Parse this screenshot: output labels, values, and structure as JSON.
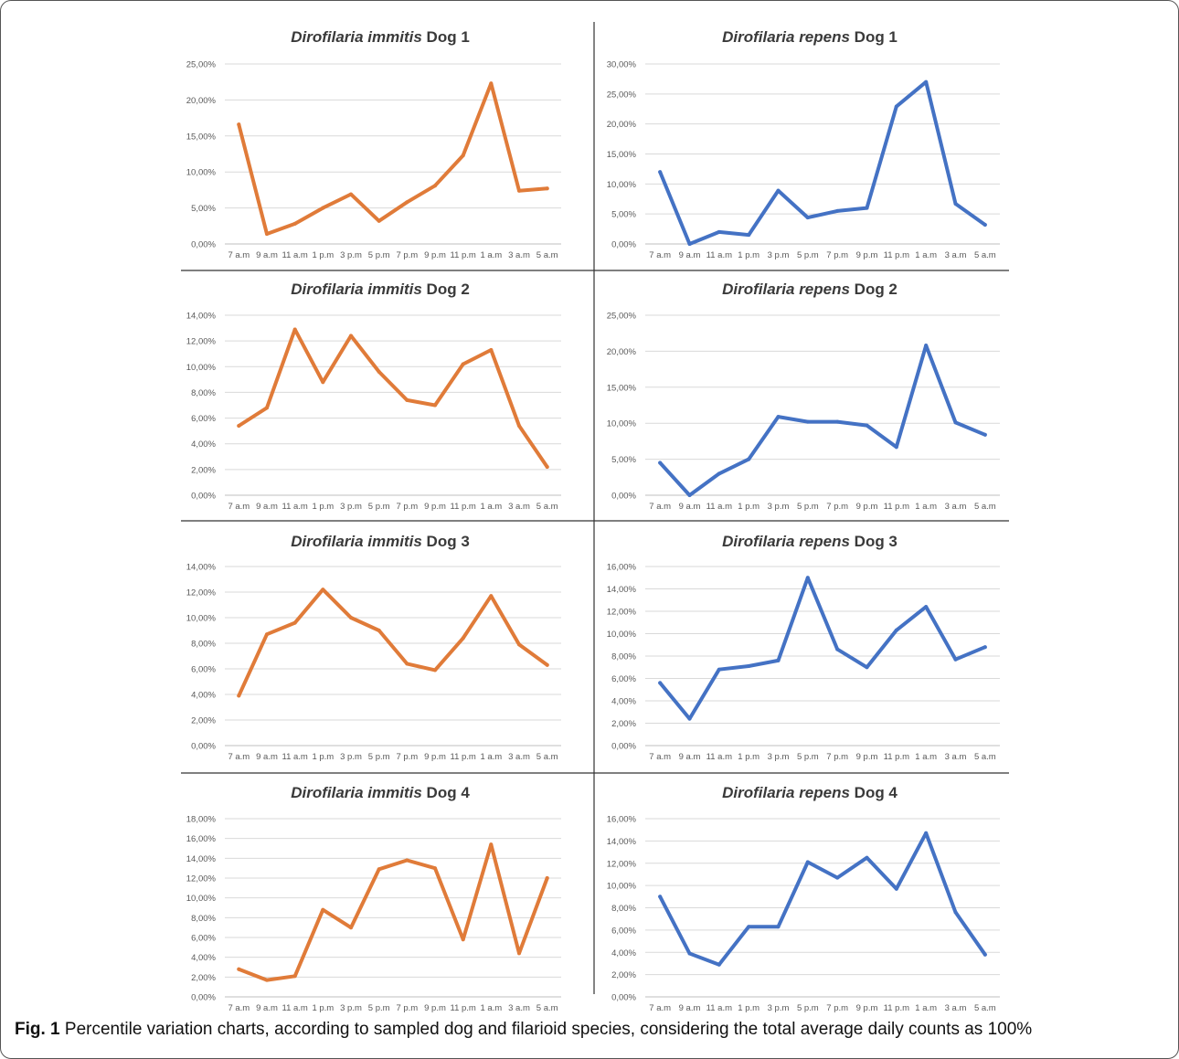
{
  "caption": {
    "label": "Fig. 1",
    "text": "Percentile variation charts, according to sampled dog and filarioid species, considering the total average daily counts as 100%"
  },
  "colors": {
    "immitis": "#e07b39",
    "repens": "#4472c4"
  },
  "chart_data": [
    {
      "type": "line",
      "title_species": "Dirofilaria immitis",
      "title_rest": " Dog 1",
      "categories": [
        "7 a.m",
        "9 a.m",
        "11 a.m",
        "1 p.m",
        "3 p.m",
        "5 p.m",
        "7 p.m",
        "9 p.m",
        "11 p.m",
        "1 a.m",
        "3 a.m",
        "5 a.m"
      ],
      "values": [
        16.6,
        1.4,
        2.8,
        5.0,
        6.9,
        3.2,
        5.8,
        8.1,
        12.3,
        22.3,
        7.4,
        7.7
      ],
      "yticks": [
        "0,00%",
        "5,00%",
        "10,00%",
        "15,00%",
        "20,00%",
        "25,00%"
      ],
      "ylim": [
        0,
        25
      ],
      "color": "immitis",
      "grid": true
    },
    {
      "type": "line",
      "title_species": "Dirofilaria repens",
      "title_rest": " Dog 1",
      "categories": [
        "7 a.m",
        "9 a.m",
        "11 a.m",
        "1 p.m",
        "3 p.m",
        "5 p.m",
        "7 p.m",
        "9 p.m",
        "11 p.m",
        "1 a.m",
        "3 a.m",
        "5 a.m"
      ],
      "values": [
        12.0,
        0.0,
        2.0,
        1.5,
        8.9,
        4.4,
        5.5,
        6.0,
        22.9,
        27.0,
        6.7,
        3.2
      ],
      "yticks": [
        "0,00%",
        "5,00%",
        "10,00%",
        "15,00%",
        "20,00%",
        "25,00%",
        "30,00%"
      ],
      "ylim": [
        0,
        30
      ],
      "color": "repens",
      "grid": true
    },
    {
      "type": "line",
      "title_species": "Dirofilaria immitis",
      "title_rest": " Dog 2",
      "categories": [
        "7 a.m",
        "9 a.m",
        "11 a.m",
        "1 p.m",
        "3 p.m",
        "5 p.m",
        "7 p.m",
        "9 p.m",
        "11 p.m",
        "1 a.m",
        "3 a.m",
        "5 a.m"
      ],
      "values": [
        5.4,
        6.8,
        12.9,
        8.8,
        12.4,
        9.6,
        7.4,
        7.0,
        10.2,
        11.3,
        5.4,
        2.2
      ],
      "yticks": [
        "0,00%",
        "2,00%",
        "4,00%",
        "6,00%",
        "8,00%",
        "10,00%",
        "12,00%",
        "14,00%"
      ],
      "ylim": [
        0,
        14
      ],
      "color": "immitis",
      "grid": true
    },
    {
      "type": "line",
      "title_species": "Dirofilaria repens",
      "title_rest": " Dog 2",
      "categories": [
        "7 a.m",
        "9 a.m",
        "11 a.m",
        "1 p.m",
        "3 p.m",
        "5 p.m",
        "7 p.m",
        "9 p.m",
        "11 p.m",
        "1 a.m",
        "3 a.m",
        "5 a.m"
      ],
      "values": [
        4.5,
        0.0,
        3.0,
        5.0,
        10.9,
        10.2,
        10.2,
        9.7,
        6.7,
        20.8,
        10.1,
        8.4
      ],
      "yticks": [
        "0,00%",
        "5,00%",
        "10,00%",
        "15,00%",
        "20,00%",
        "25,00%"
      ],
      "ylim": [
        0,
        25
      ],
      "color": "repens",
      "grid": true
    },
    {
      "type": "line",
      "title_species": "Dirofilaria immitis",
      "title_rest": " Dog 3",
      "categories": [
        "7 a.m",
        "9 a.m",
        "11 a.m",
        "1 p.m",
        "3 p.m",
        "5 p.m",
        "7 p.m",
        "9 p.m",
        "11 p.m",
        "1 a.m",
        "3 a.m",
        "5 a.m"
      ],
      "values": [
        3.9,
        8.7,
        9.6,
        12.2,
        10.0,
        9.0,
        6.4,
        5.9,
        8.4,
        11.7,
        7.9,
        6.3
      ],
      "yticks": [
        "0,00%",
        "2,00%",
        "4,00%",
        "6,00%",
        "8,00%",
        "10,00%",
        "12,00%",
        "14,00%"
      ],
      "ylim": [
        0,
        14
      ],
      "color": "immitis",
      "grid": true
    },
    {
      "type": "line",
      "title_species": "Dirofilaria repens",
      "title_rest": " Dog 3",
      "categories": [
        "7 a.m",
        "9 a.m",
        "11 a.m",
        "1 p.m",
        "3 p.m",
        "5 p.m",
        "7 p.m",
        "9 p.m",
        "11 p.m",
        "1 a.m",
        "3 a.m",
        "5 a.m"
      ],
      "values": [
        5.6,
        2.4,
        6.8,
        7.1,
        7.6,
        15.0,
        8.6,
        7.0,
        10.3,
        12.4,
        7.7,
        8.8
      ],
      "yticks": [
        "0,00%",
        "2,00%",
        "4,00%",
        "6,00%",
        "8,00%",
        "10,00%",
        "12,00%",
        "14,00%",
        "16,00%"
      ],
      "ylim": [
        0,
        16
      ],
      "color": "repens",
      "grid": true
    },
    {
      "type": "line",
      "title_species": "Dirofilaria immitis",
      "title_rest": " Dog 4",
      "categories": [
        "7 a.m",
        "9 a.m",
        "11 a.m",
        "1 p.m",
        "3 p.m",
        "5 p.m",
        "7 p.m",
        "9 p.m",
        "11 p.m",
        "1 a.m",
        "3 a.m",
        "5 a.m"
      ],
      "values": [
        2.8,
        1.7,
        2.1,
        8.8,
        7.0,
        12.9,
        13.8,
        13.0,
        5.8,
        15.4,
        4.4,
        12.0
      ],
      "yticks": [
        "0,00%",
        "2,00%",
        "4,00%",
        "6,00%",
        "8,00%",
        "10,00%",
        "12,00%",
        "14,00%",
        "16,00%",
        "18,00%"
      ],
      "ylim": [
        0,
        18
      ],
      "color": "immitis",
      "grid": true
    },
    {
      "type": "line",
      "title_species": "Dirofilaria repens",
      "title_rest": " Dog 4",
      "categories": [
        "7 a.m",
        "9 a.m",
        "11 a.m",
        "1 p.m",
        "3 p.m",
        "5 p.m",
        "7 p.m",
        "9 p.m",
        "11 p.m",
        "1 a.m",
        "3 a.m",
        "5 a.m"
      ],
      "values": [
        9.0,
        3.9,
        2.9,
        6.3,
        6.3,
        12.1,
        10.7,
        12.5,
        9.7,
        14.7,
        7.6,
        3.8
      ],
      "yticks": [
        "0,00%",
        "2,00%",
        "4,00%",
        "6,00%",
        "8,00%",
        "10,00%",
        "12,00%",
        "14,00%",
        "16,00%"
      ],
      "ylim": [
        0,
        16
      ],
      "color": "repens",
      "grid": true
    }
  ]
}
